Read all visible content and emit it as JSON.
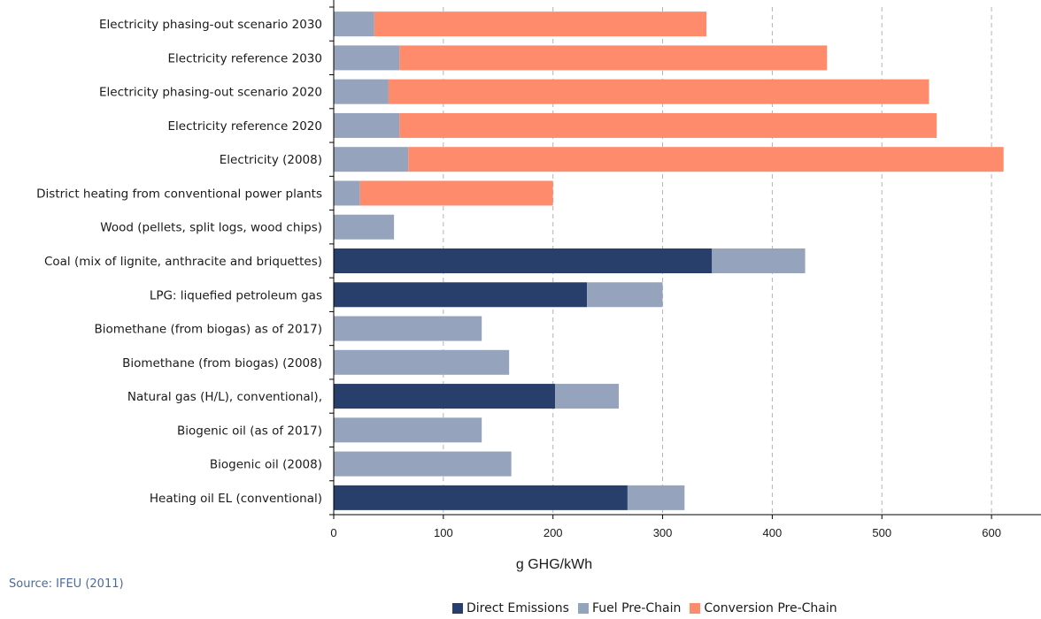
{
  "source": "Source: IFEU (2011)",
  "chart_data": {
    "type": "bar",
    "orientation": "horizontal",
    "stacked": true,
    "xlabel": "g GHG/kWh",
    "xlim": [
      0,
      650
    ],
    "xticks": [
      0,
      100,
      200,
      300,
      400,
      500,
      600
    ],
    "grid": "vertical dashed",
    "legend_position": "bottom",
    "categories": [
      "Electricity phasing-out scenario 2030",
      "Electricity reference 2030",
      "Electricity phasing-out scenario 2020",
      "Electricity reference 2020",
      "Electricity (2008)",
      "District heating from conventional power plants",
      "Wood (pellets, split logs, wood chips)",
      "Coal (mix of lignite, anthracite and briquettes)",
      "LPG: liquefied petroleum gas",
      "Biomethane (from biogas) as of 2017)",
      "Biomethane (from biogas) (2008)",
      "Natural gas (H/L), conventional),",
      "Biogenic oil (as of 2017)",
      "Biogenic oil (2008)",
      "Heating oil EL (conventional)"
    ],
    "series": [
      {
        "name": "Direct Emissions",
        "color": "#283f6b",
        "values": [
          0,
          0,
          0,
          0,
          0,
          0,
          0,
          345,
          231,
          0,
          0,
          202,
          0,
          0,
          268
        ]
      },
      {
        "name": "Fuel Pre-Chain",
        "color": "#95a3bd",
        "values": [
          37,
          60,
          50,
          60,
          68,
          24,
          55,
          85,
          69,
          135,
          160,
          58,
          135,
          162,
          52
        ]
      },
      {
        "name": "Conversion Pre-Chain",
        "color": "#fd8b6c",
        "values": [
          303,
          390,
          493,
          490,
          543,
          176,
          0,
          0,
          0,
          0,
          0,
          0,
          0,
          0,
          0
        ]
      }
    ]
  }
}
